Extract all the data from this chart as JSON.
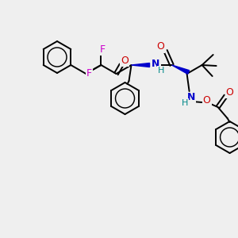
{
  "background_color": "#efefef",
  "bond_color": "#000000",
  "atom_colors": {
    "N": "#0000cc",
    "O": "#cc0000",
    "F": "#cc00cc",
    "H_on_N": "#008888",
    "wedge": "#0000cc"
  },
  "figsize": [
    3.0,
    3.0
  ],
  "dpi": 100
}
